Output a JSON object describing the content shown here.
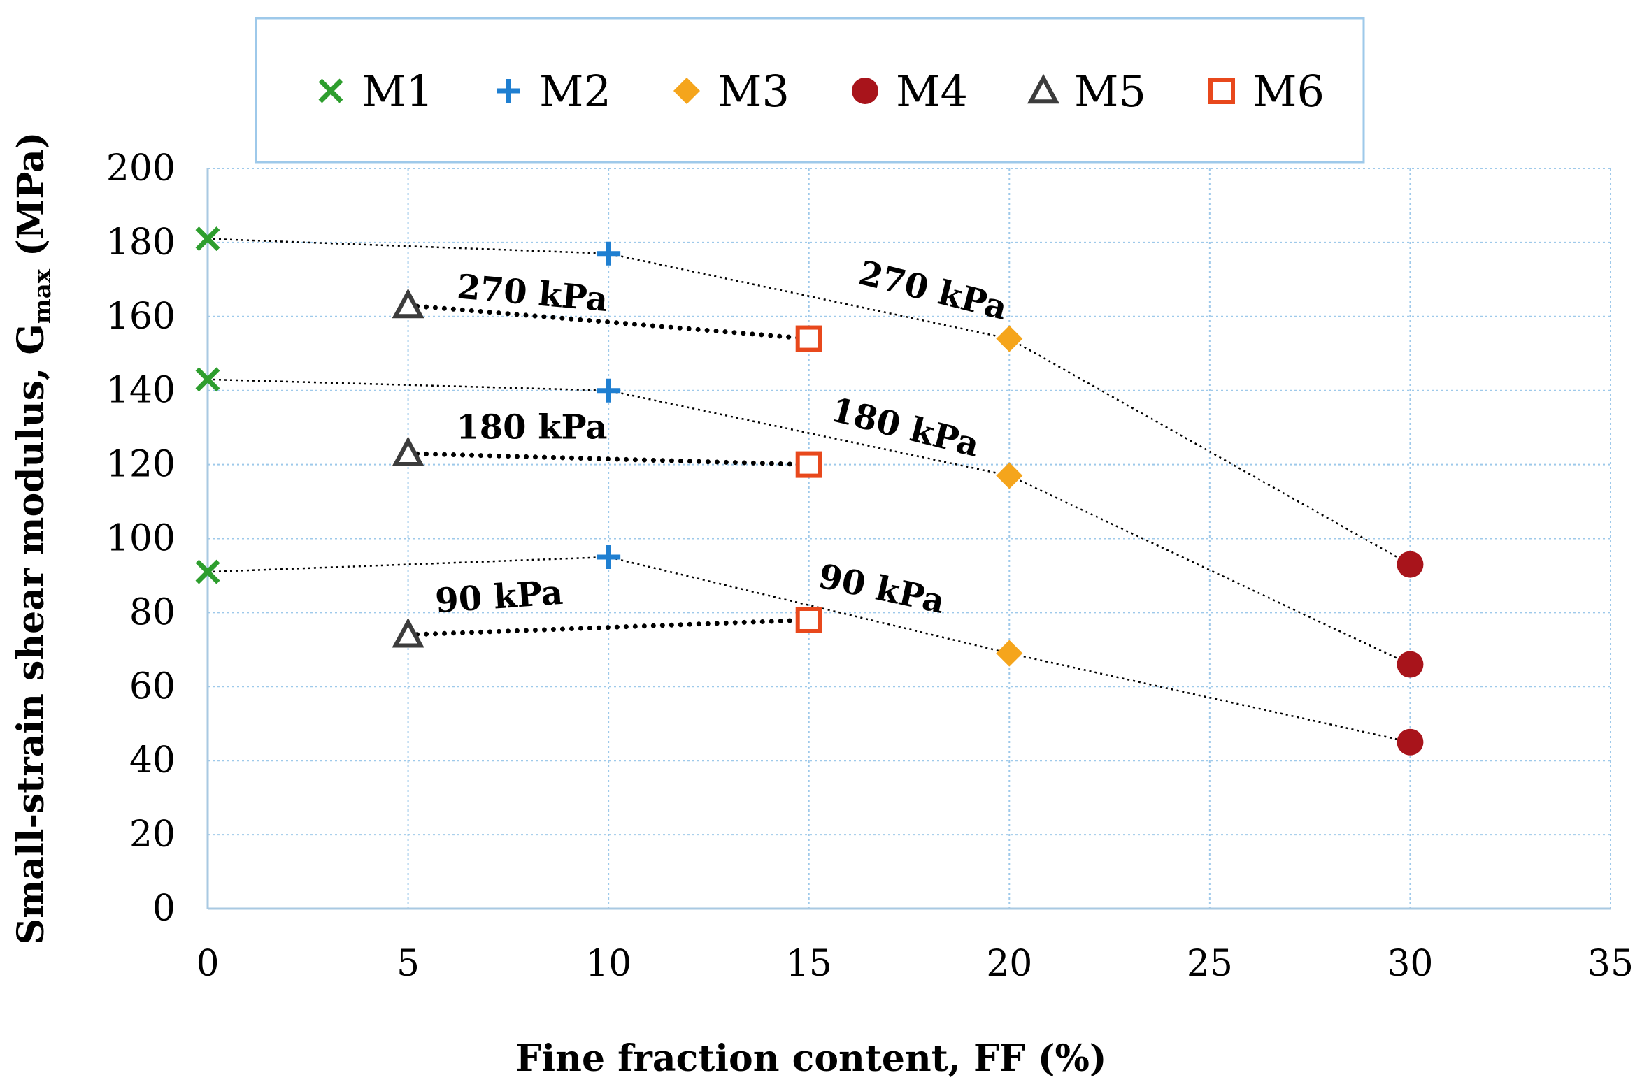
{
  "chart_data": {
    "type": "scatter",
    "xlabel": "Fine fraction content, FF (%)",
    "ylabel_prefix": "Small-strain shear modulus, G",
    "ylabel_subscript": "max",
    "ylabel_suffix": " (MPa)",
    "xlim": [
      0,
      35
    ],
    "ylim": [
      0,
      200
    ],
    "x_ticks": [
      "0",
      "5",
      "10",
      "15",
      "20",
      "25",
      "30",
      "35"
    ],
    "y_ticks": [
      "0",
      "20",
      "40",
      "60",
      "80",
      "100",
      "120",
      "140",
      "160",
      "180",
      "200"
    ],
    "grid": true,
    "legend_position": "top",
    "series": [
      {
        "name": "M1",
        "marker": "x",
        "color": "#2e9e2e",
        "points": [
          {
            "x": 0,
            "y": 181
          },
          {
            "x": 0,
            "y": 143
          },
          {
            "x": 0,
            "y": 91
          }
        ]
      },
      {
        "name": "M2",
        "marker": "plus",
        "color": "#1f7fd1",
        "points": [
          {
            "x": 10,
            "y": 177
          },
          {
            "x": 10,
            "y": 140
          },
          {
            "x": 10,
            "y": 95
          }
        ]
      },
      {
        "name": "M3",
        "marker": "diamond",
        "color": "#f5a51c",
        "points": [
          {
            "x": 20,
            "y": 154
          },
          {
            "x": 20,
            "y": 117
          },
          {
            "x": 20,
            "y": 69
          }
        ]
      },
      {
        "name": "M4",
        "marker": "circle",
        "color": "#a8141b",
        "points": [
          {
            "x": 30,
            "y": 93
          },
          {
            "x": 30,
            "y": 66
          },
          {
            "x": 30,
            "y": 45
          }
        ]
      },
      {
        "name": "M5",
        "marker": "triangle",
        "color": "#3c3c3c",
        "points": [
          {
            "x": 5,
            "y": 163
          },
          {
            "x": 5,
            "y": 123
          },
          {
            "x": 5,
            "y": 74
          }
        ]
      },
      {
        "name": "M6",
        "marker": "square",
        "color": "#e8481c",
        "points": [
          {
            "x": 15,
            "y": 154
          },
          {
            "x": 15,
            "y": 120
          },
          {
            "x": 15,
            "y": 78
          }
        ]
      }
    ],
    "trend_lines": [
      {
        "name": "270 kPa thin",
        "style": "thin",
        "points": [
          [
            0,
            181
          ],
          [
            10,
            177
          ],
          [
            20,
            154
          ],
          [
            30,
            93
          ]
        ]
      },
      {
        "name": "180 kPa thin",
        "style": "thin",
        "points": [
          [
            0,
            143
          ],
          [
            10,
            140
          ],
          [
            20,
            117
          ],
          [
            30,
            66
          ]
        ]
      },
      {
        "name": "90 kPa thin",
        "style": "thin",
        "points": [
          [
            0,
            91
          ],
          [
            10,
            95
          ],
          [
            20,
            69
          ],
          [
            30,
            45
          ]
        ]
      },
      {
        "name": "270 kPa thick",
        "style": "thick",
        "points": [
          [
            5,
            163
          ],
          [
            15,
            154
          ]
        ]
      },
      {
        "name": "180 kPa thick",
        "style": "thick",
        "points": [
          [
            5,
            123
          ],
          [
            15,
            120
          ]
        ]
      },
      {
        "name": "90 kPa thick",
        "style": "thick",
        "points": [
          [
            5,
            74
          ],
          [
            15,
            78
          ]
        ]
      }
    ],
    "annotations": [
      {
        "text": "270 kPa",
        "x": 6.2,
        "y": 165,
        "angle": 5
      },
      {
        "text": "180 kPa",
        "x": 6.2,
        "y": 127,
        "angle": 0
      },
      {
        "text": "90 kPa",
        "x": 5.7,
        "y": 80,
        "angle": -4
      },
      {
        "text": "270 kPa",
        "x": 16.2,
        "y": 169,
        "angle": 14
      },
      {
        "text": "180 kPa",
        "x": 15.5,
        "y": 132,
        "angle": 14
      },
      {
        "text": "90 kPa",
        "x": 15.2,
        "y": 87,
        "angle": 12
      }
    ]
  }
}
